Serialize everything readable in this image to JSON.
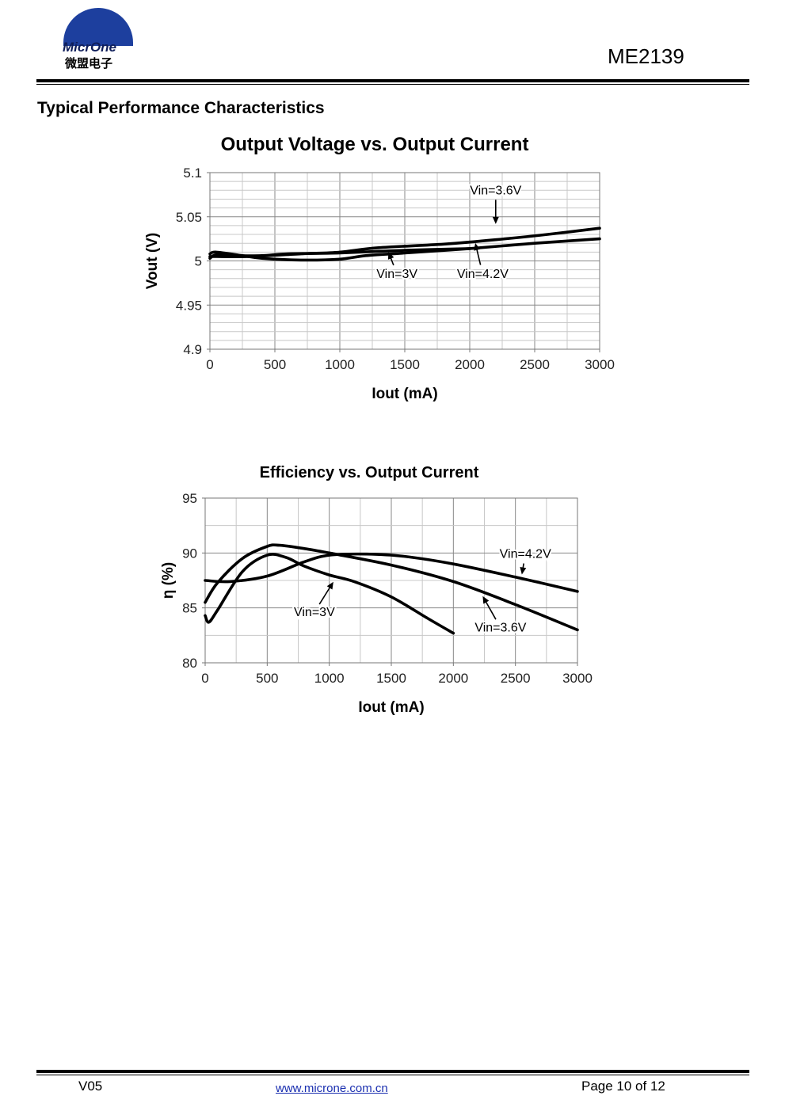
{
  "header": {
    "logo_text_en": "MicrOne",
    "logo_text_cn": "微盟电子",
    "doc_id": "ME2139"
  },
  "section_title": "Typical Performance Characteristics",
  "footer": {
    "version": "V05",
    "website": "www.microne.com.cn",
    "page": "Page 10 of 12"
  },
  "chart_data": [
    {
      "type": "line",
      "title": "Output Voltage vs. Output Current",
      "xlabel": "Iout (mA)",
      "ylabel": "Vout (V)",
      "xlim": [
        0,
        3000
      ],
      "ylim": [
        4.9,
        5.1
      ],
      "xticks": [
        "0",
        "500",
        "1000",
        "1500",
        "2000",
        "2500",
        "3000"
      ],
      "yticks": [
        "5.1",
        "5.05",
        "5",
        "4.95",
        "4.9"
      ],
      "grid": true,
      "line_color": "#000000",
      "series": [
        {
          "name": "Vin=3V",
          "x": [
            0,
            50,
            200,
            400,
            600,
            1000,
            1500,
            2000
          ],
          "y": [
            5.003,
            5.007,
            5.006,
            5.006,
            5.008,
            5.009,
            5.012,
            5.014
          ]
        },
        {
          "name": "Vin=3.6V",
          "x": [
            0,
            50,
            250,
            400,
            700,
            1000,
            1200,
            1500,
            2000,
            2500,
            3000
          ],
          "y": [
            5.008,
            5.01,
            5.006,
            5.003,
            5.001,
            5.002,
            5.006,
            5.009,
            5.014,
            5.02,
            5.025
          ]
        },
        {
          "name": "Vin=4.2V",
          "x": [
            0,
            300,
            700,
            1000,
            1300,
            1800,
            2200,
            2600,
            3000
          ],
          "y": [
            5.005,
            5.005,
            5.008,
            5.01,
            5.015,
            5.019,
            5.024,
            5.03,
            5.037
          ]
        }
      ],
      "annotations": [
        {
          "text": "Vin=3.6V",
          "x": 2200,
          "y": 5.08,
          "arrow_to_x": 2200,
          "arrow_to_y": 5.04
        },
        {
          "text": "Vin=3V",
          "x": 1440,
          "y": 4.985,
          "arrow_to_x": 1370,
          "arrow_to_y": 5.012
        },
        {
          "text": "Vin=4.2V",
          "x": 2100,
          "y": 4.985,
          "arrow_to_x": 2040,
          "arrow_to_y": 5.022
        }
      ]
    },
    {
      "type": "line",
      "title": "Efficiency  vs. Output Current",
      "xlabel": "Iout (mA)",
      "ylabel": "η (%)",
      "xlim": [
        0,
        3000
      ],
      "ylim": [
        80,
        95
      ],
      "xticks": [
        "0",
        "500",
        "1000",
        "1500",
        "2000",
        "2500",
        "3000"
      ],
      "yticks": [
        "95",
        "90",
        "85",
        "80"
      ],
      "grid": true,
      "line_color": "#000000",
      "series": [
        {
          "name": "Vin=3V",
          "x": [
            0,
            30,
            100,
            300,
            500,
            650,
            800,
            1000,
            1200,
            1500,
            1800,
            2000
          ],
          "y": [
            84.3,
            83.7,
            84.8,
            88.3,
            89.8,
            89.6,
            88.8,
            88.0,
            87.4,
            86.0,
            84.0,
            82.7
          ]
        },
        {
          "name": "Vin=3.6V",
          "x": [
            0,
            100,
            300,
            500,
            600,
            800,
            1000,
            1500,
            2000,
            2500,
            3000
          ],
          "y": [
            85.5,
            87.3,
            89.5,
            90.6,
            90.7,
            90.4,
            90.0,
            88.9,
            87.4,
            85.3,
            83.0
          ]
        },
        {
          "name": "Vin=4.2V",
          "x": [
            0,
            200,
            500,
            800,
            1000,
            1300,
            1600,
            2000,
            2500,
            3000
          ],
          "y": [
            87.5,
            87.4,
            87.9,
            89.2,
            89.8,
            89.9,
            89.7,
            89.0,
            87.8,
            86.5
          ]
        }
      ],
      "annotations": [
        {
          "text": "Vin=4.2V",
          "x": 2580,
          "y": 89.9,
          "arrow_to_x": 2550,
          "arrow_to_y": 87.9
        },
        {
          "text": "Vin=3V",
          "x": 880,
          "y": 84.6,
          "arrow_to_x": 1040,
          "arrow_to_y": 87.5
        },
        {
          "text": "Vin=3.6V",
          "x": 2380,
          "y": 83.2,
          "arrow_to_x": 2230,
          "arrow_to_y": 86.2
        }
      ]
    }
  ]
}
